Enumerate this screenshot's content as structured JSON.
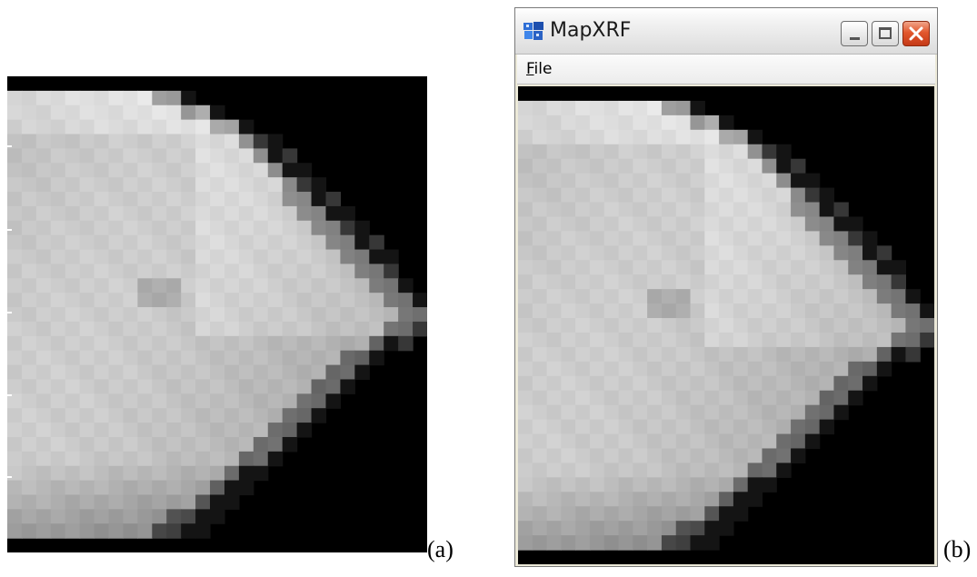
{
  "captions": {
    "left": "(a)",
    "right": "(b)"
  },
  "window": {
    "title": "MapXRF",
    "menu": [
      {
        "label": "File",
        "mnemonic": "F"
      }
    ],
    "buttons": [
      "minimize",
      "maximize",
      "close"
    ],
    "icons": {
      "app": "mapxrf-app-icon"
    }
  },
  "colors": {
    "background": "#000000",
    "close_button": "#d8471f",
    "window_frame": "#ece9d8"
  },
  "image": {
    "type": "grayscale-xrf-element-map",
    "description_key": "pixelated-specimen-map"
  }
}
